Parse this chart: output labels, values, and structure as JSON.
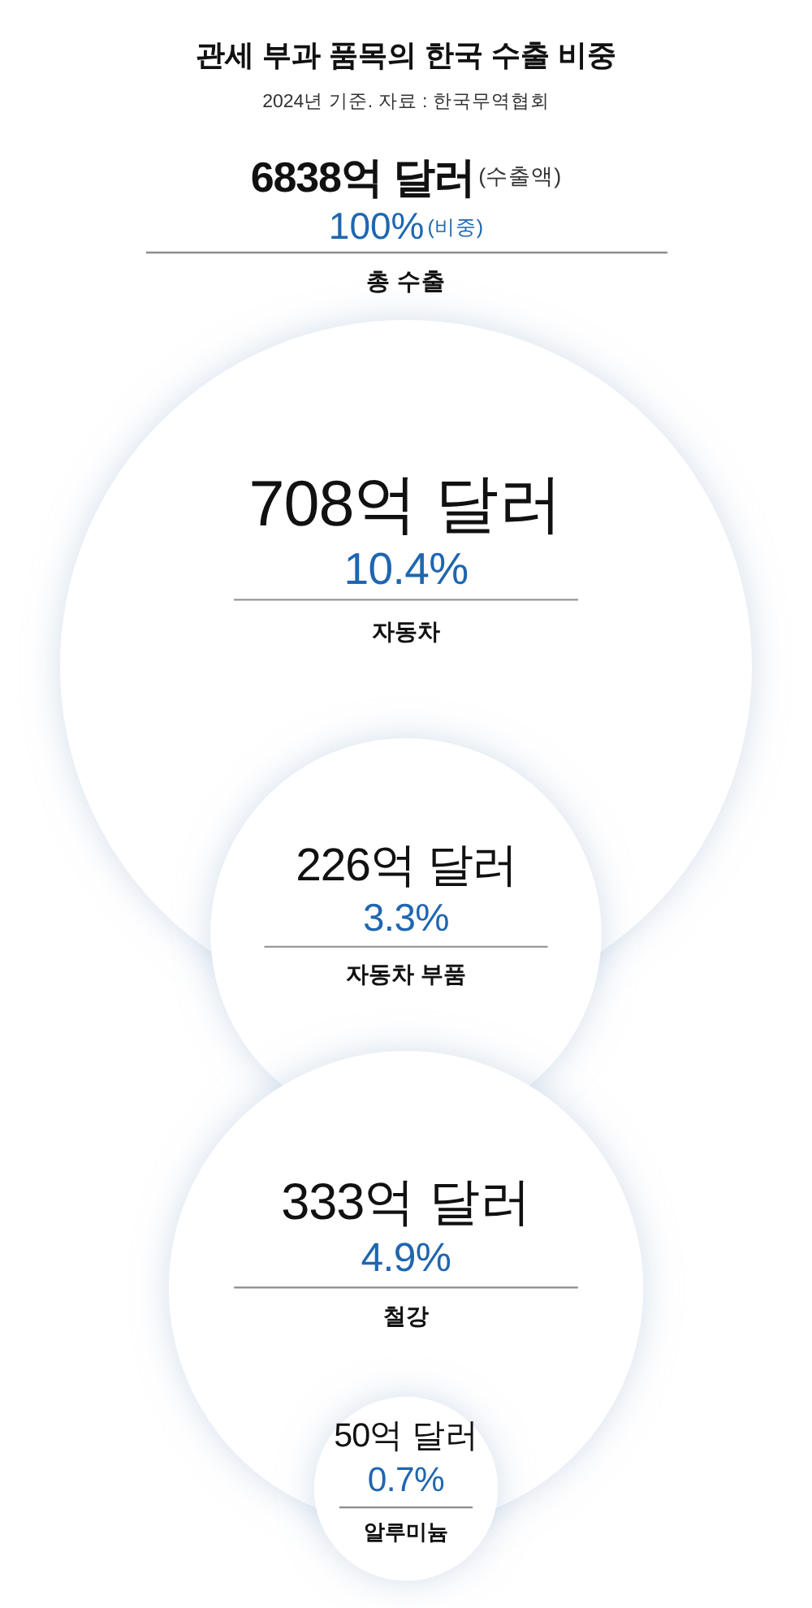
{
  "chart_data": {
    "type": "other",
    "title": "관세 부과 품목의 한국 수출 비중",
    "subtitle": "2024년 기준. 자료 : 한국무역협회",
    "categories": [
      "총 수출",
      "자동차",
      "자동차 부품",
      "철강",
      "알루미늄"
    ],
    "series": [
      {
        "name": "(수출액)",
        "color": "#111111",
        "values": [
          6838,
          708,
          226,
          333,
          50
        ],
        "value_labels": [
          "6838억 달러",
          "708억 달러",
          "226억 달러",
          "333억 달러",
          "50억 달러"
        ]
      },
      {
        "name": "(비중)",
        "color": "#1f66b0",
        "values": [
          100,
          10.4,
          3.3,
          4.9,
          0.7
        ],
        "value_labels": [
          "100%",
          "10.4%",
          "3.3%",
          "4.9%",
          "0.7%"
        ]
      }
    ]
  }
}
